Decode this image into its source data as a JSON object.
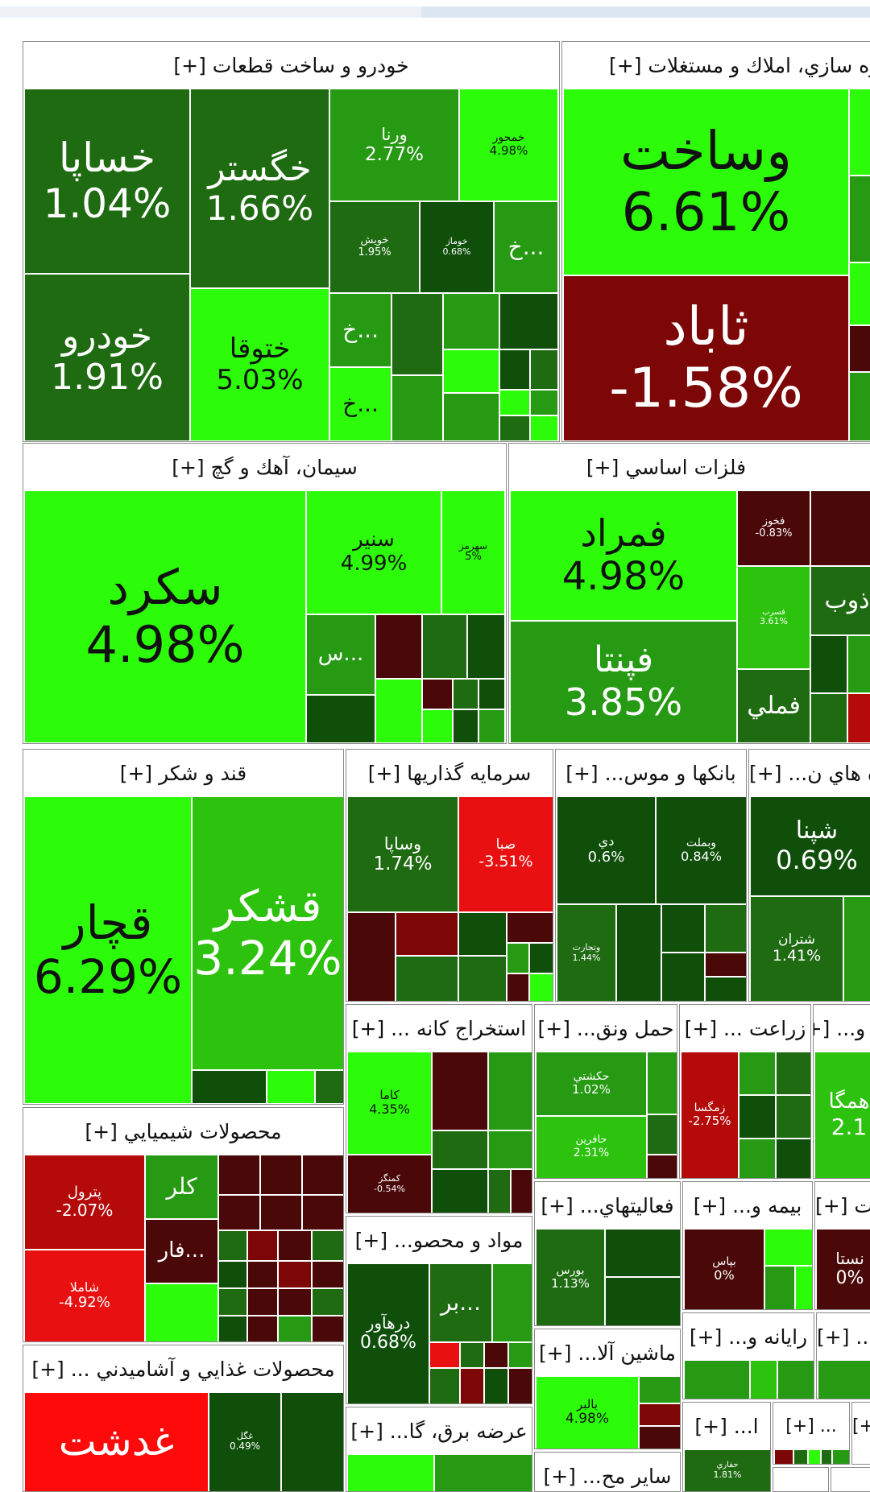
{
  "colors": {
    "lime": "#2cfc0a",
    "green": "#259a12",
    "dark": "#1f6b12",
    "darker": "#0f4f0a",
    "maroon": "#4a0808",
    "darkred": "#7d0606",
    "red": "#e81010"
  },
  "sectors": {
    "auto": {
      "title": "خودرو و ساخت قطعات [+]",
      "khasapa": {
        "name": "خساپا",
        "pct": "1.04%"
      },
      "khegostar": {
        "name": "خگستر",
        "pct": "1.66%"
      },
      "varna": {
        "name": "ورنا",
        "pct": "2.77%"
      },
      "khamhavar": {
        "name": "خمحور",
        "pct": "4.98%"
      },
      "khodro": {
        "name": "خودرو",
        "pct": "1.91%"
      },
      "khatooqa": {
        "name": "ختوقا",
        "pct": "5.03%"
      },
      "khavish": {
        "name": "خويش",
        "pct": "1.95%"
      },
      "khomaz": {
        "name": "خوماز",
        "pct": "0.68%"
      },
      "cut1": "خ...",
      "cut2": "خ...",
      "cut3": "خ..."
    },
    "real_estate": {
      "title": "انبوه سازي، املاك و مستغلات [+]",
      "vasakht": {
        "name": "وساخت",
        "pct": "6.61%"
      },
      "sabad": {
        "name": "ثاباد",
        "pct": "-1.58%"
      }
    },
    "cement": {
      "title": "سيمان، آهك و گچ [+]",
      "sekord": {
        "name": "سكرد",
        "pct": "4.98%"
      },
      "senir": {
        "name": "سنير",
        "pct": "4.99%"
      },
      "sahormoz": {
        "name": "سهرمز",
        "pct": "5%"
      },
      "cut": "س..."
    },
    "metals": {
      "title": "فلزات اساسي [+]",
      "famrad": {
        "name": "فمراد",
        "pct": "4.98%"
      },
      "fapenta": {
        "name": "فپنتا",
        "pct": "3.85%"
      },
      "fakhoz": {
        "name": "فخوز",
        "pct": "-0.83%"
      },
      "fasorb": {
        "name": "فسرب",
        "pct": "3.61%"
      },
      "zob": "ذوب",
      "fameli": "فملي"
    },
    "sugar": {
      "title": "قند و شكر [+]",
      "qchar": {
        "name": "قچار",
        "pct": "6.29%"
      },
      "qshekar": {
        "name": "قشكر",
        "pct": "3.24%"
      }
    },
    "invest": {
      "title": "سرمايه گذاريها [+]",
      "vasapa": {
        "name": "وساپا",
        "pct": "1.74%"
      },
      "saba": {
        "name": "صبا",
        "pct": "-3.51%"
      }
    },
    "banks": {
      "title": "بانكها و موس... [+]",
      "dey": {
        "name": "دي",
        "pct": "0.6%"
      },
      "vbemellat": {
        "name": "وبملت",
        "pct": "0.84%"
      },
      "vtejarat": {
        "name": "وتجارت",
        "pct": "1.44%"
      }
    },
    "pharma": {
      "title": "فرآورده هاي ن... [+]",
      "shepna": {
        "name": "شپنا",
        "pct": "0.69%"
      },
      "shetran": {
        "name": "شتران",
        "pct": "1.41%"
      }
    },
    "mining": {
      "title": "استخراج كانه ... [+]",
      "kama": {
        "name": "كاما",
        "pct": "4.35%"
      },
      "kamangez": {
        "name": "كمنگز",
        "pct": "-0.54%"
      }
    },
    "transport": {
      "title": "حمل ونق... [+]",
      "hakeshti": {
        "name": "حكشتي",
        "pct": "1.02%"
      },
      "hafarin": {
        "name": "حافرين",
        "pct": "2.31%"
      }
    },
    "agri": {
      "title": "زراعت ... [+]",
      "zamgesa": {
        "name": "زمگسا",
        "pct": "-2.75%"
      }
    },
    "telecom": {
      "title": "اطلاعات و... [+]",
      "hamga": {
        "name": "همگا",
        "pct": "2.1"
      }
    },
    "chemical": {
      "title": "محصولات شيميايي [+]",
      "petrol": {
        "name": "پترول",
        "pct": "-2.07%"
      },
      "shamla": {
        "name": "شاملا",
        "pct": "-4.92%"
      },
      "kolor": "كلر",
      "fara": "فار..."
    },
    "materials": {
      "title": "مواد و محصو... [+]",
      "darhavar": {
        "name": "درهآور",
        "pct": "0.68%"
      },
      "bar": "بر..."
    },
    "finance": {
      "title": "فعاليتهاي... [+]",
      "boors": {
        "name": "بورس",
        "pct": "1.13%"
      }
    },
    "insurance": {
      "title": "بيمه و... [+]",
      "bapas": {
        "name": "بپاس",
        "pct": "0%"
      }
    },
    "textile": {
      "title": "منسوجات [+]",
      "nasta": {
        "name": "نستا",
        "pct": "0%"
      }
    },
    "food": {
      "title": "محصولات غذايي و آشاميدني ... [+]",
      "ghadasht": {
        "name": "غدشت",
        "pct": ""
      },
      "ghegol": {
        "name": "غگل",
        "pct": "0.49%"
      }
    },
    "machinery": {
      "title": "ماشين آلا... [+]",
      "balbor": {
        "name": "بالبر",
        "pct": "4.98%"
      }
    },
    "computer": {
      "title": "رايانه و... [+]"
    },
    "other1": {
      "title": "سا... [+]"
    },
    "utility": {
      "title": "عرضه برق، گا... [+]"
    },
    "misc": {
      "title": "ساير مح... [+]"
    },
    "small1": {
      "title": "ا... [+]",
      "hafari": {
        "name": "حفاري",
        "pct": "1.81%"
      }
    },
    "small2": {
      "title": "... [+]"
    },
    "small3": {
      "title": "[+]"
    }
  }
}
